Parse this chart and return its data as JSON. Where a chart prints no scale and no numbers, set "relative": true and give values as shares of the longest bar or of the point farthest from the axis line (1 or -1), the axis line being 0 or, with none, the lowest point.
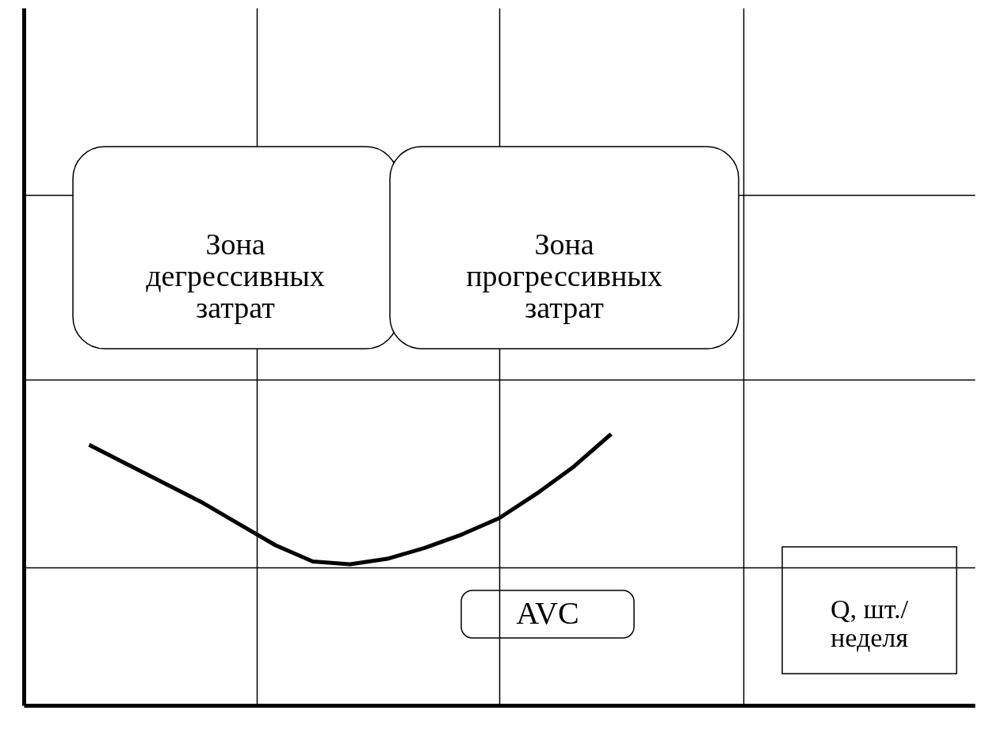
{
  "chart_data": {
    "type": "line",
    "relative": true,
    "categories": [
      null,
      null,
      null,
      null,
      null,
      null,
      null,
      null,
      null,
      null,
      null,
      null,
      null,
      null,
      null,
      null,
      null,
      null,
      null,
      null,
      null,
      null,
      null,
      null,
      null
    ],
    "series": [
      {
        "color": "#000000",
        "values": [
          null,
          0.96,
          0.89,
          0.82,
          0.75,
          0.67,
          0.59,
          0.53,
          0.52,
          0.54,
          0.58,
          0.63,
          0.69,
          0.78,
          0.88,
          1.0,
          null,
          null,
          null,
          null,
          null,
          null,
          null,
          null,
          null
        ]
      }
    ],
    "grid": true,
    "line_style": "solid",
    "annotations": [
      "Зона\nдегрессивных\nзатрат",
      "Зона\nпрогрессивных\nзатрат",
      "AVC",
      "Q, шт./\nнеделя"
    ]
  }
}
